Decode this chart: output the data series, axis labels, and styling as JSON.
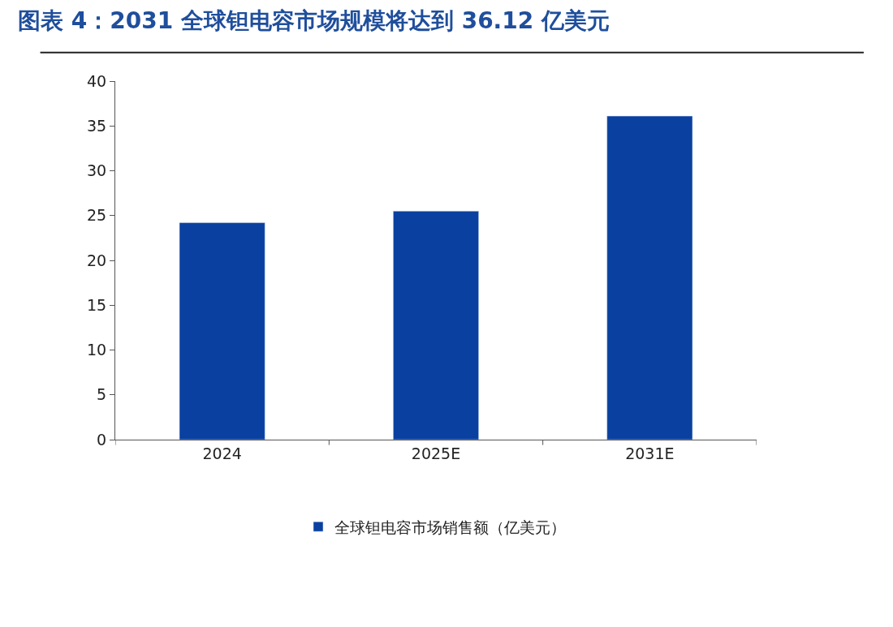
{
  "chart_data": {
    "type": "bar",
    "title": "图表 4：2031 全球钽电容市场规模将达到 36.12 亿美元",
    "categories": [
      "2024",
      "2025E",
      "2031E"
    ],
    "series": [
      {
        "name": "全球钽电容市场销售额（亿美元）",
        "color": "#0a41a0",
        "values": [
          24.2,
          25.5,
          36.1
        ]
      }
    ],
    "ylim": [
      0,
      40
    ],
    "yticks": [
      0,
      5,
      10,
      15,
      20,
      25,
      30,
      35,
      40
    ],
    "legend": "bottom"
  }
}
